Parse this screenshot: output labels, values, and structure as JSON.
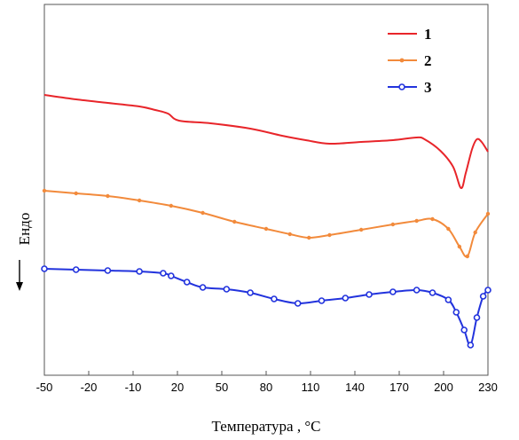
{
  "chart_data": {
    "type": "line",
    "xlabel": "Температура , °C",
    "ylabel": "Ендо",
    "xlim": [
      -50,
      230
    ],
    "x_ticks": [
      "-50",
      "-20",
      "-10",
      "20",
      "50",
      "80",
      "110",
      "140",
      "170",
      "200",
      "230"
    ],
    "grid": false,
    "legend_position": "top-right",
    "series": [
      {
        "name": "1",
        "color": "#e8252a",
        "marker": "none",
        "x": [
          -50,
          -30,
          -10,
          10,
          20,
          28,
          35,
          55,
          80,
          100,
          115,
          130,
          150,
          170,
          185,
          190,
          200,
          208,
          213,
          216,
          220,
          223,
          226,
          230
        ],
        "y": [
          107,
          112,
          116,
          120,
          124,
          128,
          136,
          139,
          145,
          153,
          158,
          162,
          160,
          158,
          155,
          157,
          170,
          188,
          212,
          195,
          168,
          157,
          160,
          171
        ]
      },
      {
        "name": "2",
        "color": "#f28a3b",
        "marker": "dot",
        "x": [
          -50,
          -30,
          -10,
          10,
          30,
          50,
          70,
          90,
          105,
          117,
          130,
          150,
          170,
          185,
          195,
          205,
          212,
          217,
          222,
          230
        ],
        "y": [
          215,
          218,
          221,
          226,
          232,
          240,
          250,
          258,
          264,
          268,
          265,
          259,
          253,
          249,
          247,
          258,
          278,
          289,
          262,
          241
        ]
      },
      {
        "name": "3",
        "color": "#2233dd",
        "marker": "circle",
        "x": [
          -50,
          -30,
          -10,
          10,
          25,
          30,
          40,
          50,
          65,
          80,
          95,
          110,
          125,
          140,
          155,
          170,
          185,
          195,
          205,
          210,
          215,
          219,
          223,
          227,
          230
        ],
        "y": [
          303,
          304,
          305,
          306,
          308,
          311,
          318,
          324,
          326,
          330,
          337,
          342,
          339,
          336,
          332,
          329,
          327,
          330,
          338,
          352,
          372,
          389,
          358,
          334,
          327
        ]
      }
    ]
  }
}
